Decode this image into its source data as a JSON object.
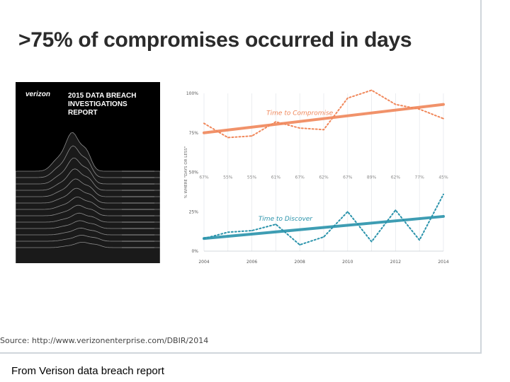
{
  "slide": {
    "headline": ">75% of compromises occurred in days",
    "source": "Source: http://www.verizonenterprise.com/DBIR/2014",
    "caption": "From Verison data breach report"
  },
  "report_cover": {
    "logo": "verizon",
    "title": "2015 DATA BREACH INVESTIGATIONS REPORT",
    "colors": {
      "background": "#000000",
      "ridges": "#8c8c8c"
    }
  },
  "chart_data": {
    "type": "line",
    "x": [
      2004,
      2005,
      2006,
      2007,
      2008,
      2009,
      2010,
      2011,
      2012,
      2013,
      2014
    ],
    "x_ticks": [
      "2004",
      "2006",
      "2008",
      "2010",
      "2012",
      "2014"
    ],
    "y_ticks": [
      "0%",
      "25%",
      "50%",
      "75%",
      "100%"
    ],
    "ylim": [
      0,
      100
    ],
    "ylabel": "% WHERE \"DAYS OR LESS\"",
    "grid": true,
    "series": [
      {
        "name": "Time to Compromise",
        "color": "#f0875a",
        "values": [
          81,
          72,
          73,
          82,
          78,
          77,
          97,
          102,
          93,
          90,
          84
        ],
        "trend": [
          75,
          93
        ]
      },
      {
        "name": "Time to Discover",
        "color": "#2a93ab",
        "values": [
          8,
          12,
          13,
          17,
          4,
          9,
          25,
          6,
          26,
          7,
          36
        ],
        "trend": [
          8,
          22
        ]
      }
    ],
    "gap_labels": [
      "67%",
      "55%",
      "55%",
      "61%",
      "67%",
      "62%",
      "67%",
      "89%",
      "62%",
      "77%",
      "45%"
    ]
  }
}
